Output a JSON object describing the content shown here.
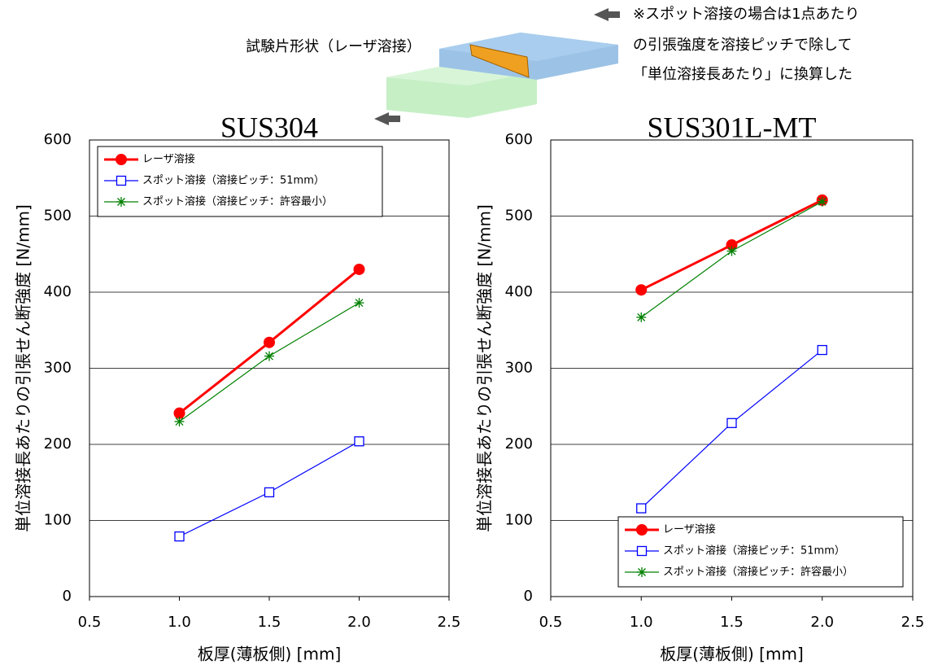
{
  "figure": {
    "specimen_label": "試験片形状（レーザ溶接）",
    "note": [
      "※スポット溶接の場合は1点あたり",
      "の引張強度を溶接ピッチで除して",
      "「単位溶接長あたり」に換算した"
    ]
  },
  "chart_data": [
    {
      "type": "line",
      "title": "SUS304",
      "x_label": "板厚(薄板側) [mm]",
      "y_label": "単位溶接長あたりの引張せん断強度 [N/mm]",
      "x": [
        1.0,
        1.5,
        2.0
      ],
      "xlim": [
        0.5,
        2.5
      ],
      "xticks": [
        0.5,
        {
          "value": 1.0,
          "label": "1.0"
        },
        1.5,
        {
          "value": 2.0,
          "label": "2.0"
        },
        2.5
      ],
      "ylim": [
        0,
        600
      ],
      "yticks": [
        0,
        100,
        200,
        300,
        400,
        500,
        600
      ],
      "grid": true,
      "legend": "upper left",
      "series": [
        {
          "name": "レーザ溶接",
          "color": "#ff0000",
          "marker": "circle",
          "values": [
            241,
            334,
            430
          ]
        },
        {
          "name": "スポット溶接（溶接ピッチ：51mm）",
          "color": "#0000ff",
          "marker": "square",
          "values": [
            79,
            137,
            204
          ]
        },
        {
          "name": "スポット溶接（溶接ピッチ：許容最小）",
          "color": "#008000",
          "marker": "asterisk",
          "values": [
            230,
            316,
            386
          ]
        }
      ]
    },
    {
      "type": "line",
      "title": "SUS301L-MT",
      "x_label": "板厚(薄板側) [mm]",
      "y_label": "単位溶接長あたりの引張せん断強度 [N/mm]",
      "x": [
        1.0,
        1.5,
        2.0
      ],
      "xlim": [
        0.5,
        2.5
      ],
      "xticks": [
        0.5,
        {
          "value": 1.0,
          "label": "1.0"
        },
        1.5,
        {
          "value": 2.0,
          "label": "2.0"
        },
        2.5
      ],
      "ylim": [
        0,
        600
      ],
      "yticks": [
        0,
        100,
        200,
        300,
        400,
        500,
        600
      ],
      "grid": true,
      "legend": "lower right",
      "series": [
        {
          "name": "レーザ溶接",
          "color": "#ff0000",
          "marker": "circle",
          "values": [
            403,
            462,
            521
          ]
        },
        {
          "name": "スポット溶接（溶接ピッチ：51mm）",
          "color": "#0000ff",
          "marker": "square",
          "values": [
            116,
            228,
            324
          ]
        },
        {
          "name": "スポット溶接（溶接ピッチ：許容最小）",
          "color": "#008000",
          "marker": "asterisk",
          "values": [
            367,
            454,
            519
          ]
        }
      ]
    }
  ]
}
